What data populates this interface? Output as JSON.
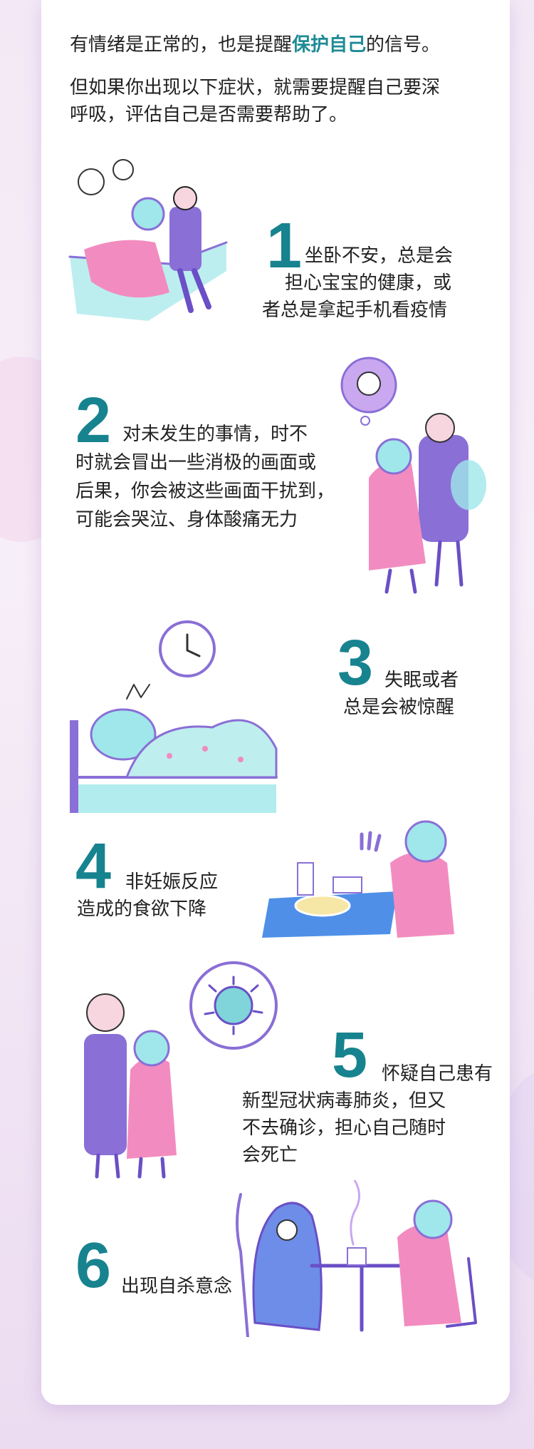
{
  "intro": {
    "line1_before": "有情绪是正常的，也是提醒",
    "line1_highlight": "保护自己",
    "line1_after": "的信号。",
    "line2": "但如果你出现以下症状，就需要提醒自己要深",
    "line3": "呼吸，评估自己是否需要帮助了。"
  },
  "items": [
    {
      "number": "1",
      "lines": [
        "坐卧不安，总是会",
        "担心宝宝的健康，或",
        "者总是拿起手机看疫情"
      ]
    },
    {
      "number": "2",
      "lines": [
        "对未发生的事情，时不",
        "时就会冒出一些消极的画面或",
        "后果，你会被这些画面干扰到，",
        "可能会哭泣、身体酸痛无力"
      ]
    },
    {
      "number": "3",
      "lines": [
        "失眠或者",
        "总是会被惊醒"
      ]
    },
    {
      "number": "4",
      "lines": [
        "非妊娠反应",
        "造成的食欲下降"
      ]
    },
    {
      "number": "5",
      "lines": [
        "怀疑自己患有",
        "新型冠状病毒肺炎，但又",
        "不去确诊，担心自己随时",
        "会死亡"
      ]
    },
    {
      "number": "6",
      "lines": [
        "出现自杀意念"
      ]
    }
  ],
  "colors": {
    "accent": "#1e8b95",
    "purple": "#9b7be0",
    "pink": "#f08bc0",
    "cyan": "#9fe7ea"
  }
}
